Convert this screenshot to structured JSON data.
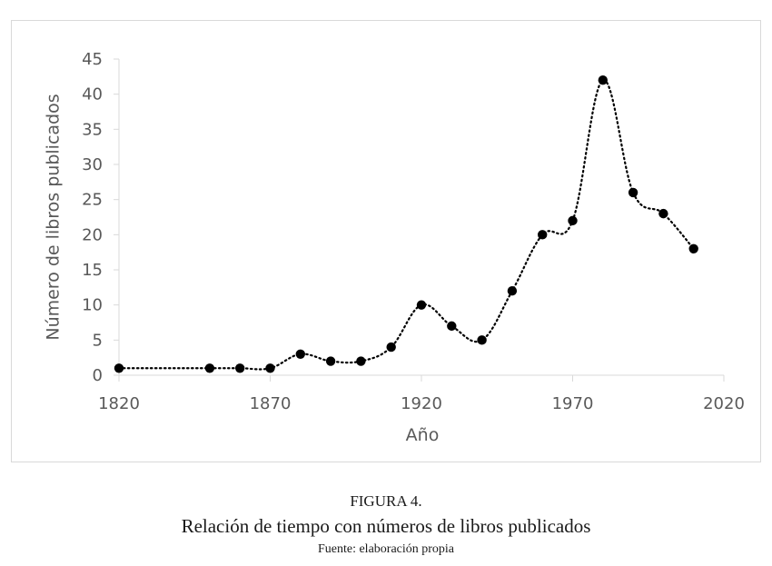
{
  "chart_data": {
    "type": "line",
    "x": [
      1820,
      1850,
      1860,
      1870,
      1880,
      1890,
      1900,
      1910,
      1920,
      1930,
      1940,
      1950,
      1960,
      1970,
      1980,
      1990,
      2000,
      2010
    ],
    "series": [
      {
        "values": [
          1,
          1,
          1,
          1,
          3,
          2,
          2,
          4,
          10,
          7,
          5,
          12,
          20,
          22,
          42,
          26,
          23,
          18
        ]
      }
    ],
    "xlabel": "Año",
    "ylabel": "Número de libros publicados",
    "xlim": [
      1820,
      2020
    ],
    "ylim": [
      0,
      45
    ],
    "xticks": [
      1820,
      1870,
      1920,
      1970,
      2020
    ],
    "yticks": [
      0,
      5,
      10,
      15,
      20,
      25,
      30,
      35,
      40,
      45
    ],
    "line_style": "dotted",
    "marker": "filled-circle",
    "series_color": "#000000",
    "grid": false,
    "legend": "none"
  },
  "caption": {
    "label": "FIGURA 4.",
    "title": "Relación de tiempo con números de libros publicados",
    "source": "Fuente: elaboración propia"
  }
}
